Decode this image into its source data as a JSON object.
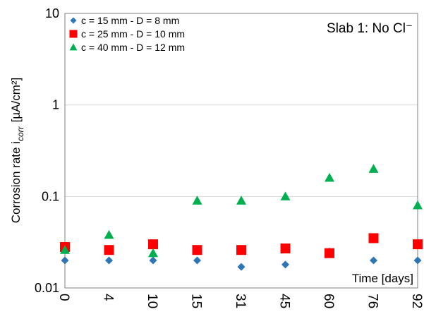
{
  "chart_data": {
    "type": "scatter",
    "title": "",
    "annotation": "Slab 1: No Cl⁻",
    "xlabel": "Time [days]",
    "ylabel": "Corrosion rate i",
    "ylabel_sub": "corr",
    "ylabel_unit": "[µA/cm²]",
    "y_scale": "log",
    "ylim": [
      0.01,
      10
    ],
    "y_ticks": [
      "0.01",
      "0.1",
      "1",
      "10"
    ],
    "categories": [
      "0",
      "4",
      "10",
      "15",
      "31",
      "45",
      "60",
      "76",
      "92"
    ],
    "grid": "horizontal",
    "legend_position": "top-left",
    "series": [
      {
        "name": "c = 15 mm - D = 8 mm",
        "marker": "diamond",
        "color": "#2e75b6",
        "values": [
          0.02,
          0.02,
          0.02,
          0.02,
          0.017,
          0.018,
          0.025,
          0.02,
          0.02
        ]
      },
      {
        "name": "c = 25 mm - D = 10 mm",
        "marker": "square",
        "color": "#ff0000",
        "values": [
          0.028,
          0.026,
          0.03,
          0.026,
          0.026,
          0.027,
          0.024,
          0.035,
          0.03
        ]
      },
      {
        "name": "c = 40 mm - D = 12 mm",
        "marker": "triangle",
        "color": "#00b050",
        "values": [
          0.026,
          0.038,
          0.024,
          0.09,
          0.09,
          0.1,
          0.16,
          0.2,
          0.08
        ]
      }
    ]
  }
}
